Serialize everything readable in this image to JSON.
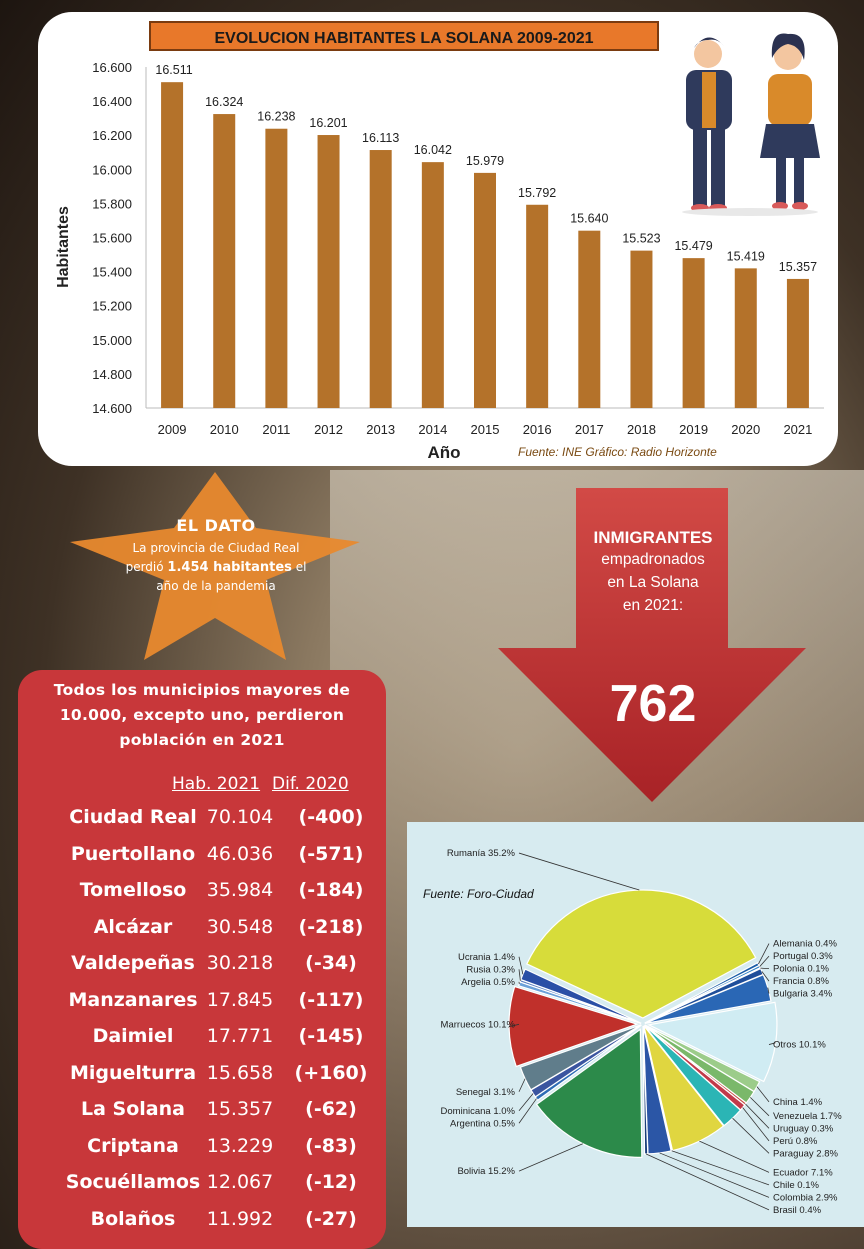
{
  "top_chart": {
    "title": "EVOLUCION HABITANTES  LA SOLANA 2009-2021",
    "source": "Fuente: INE   Gráfico: Radio Horizonte"
  },
  "chart_data": [
    {
      "type": "bar",
      "title": "EVOLUCION HABITANTES  LA SOLANA 2009-2021",
      "xlabel": "Año",
      "ylabel": "Habitantes",
      "ylim": [
        14600,
        16600
      ],
      "y_ticks": [
        "14.600",
        "14.800",
        "15.000",
        "15.200",
        "15.400",
        "15.600",
        "15.800",
        "16.000",
        "16.200",
        "16.400",
        "16.600"
      ],
      "categories": [
        "2009",
        "2010",
        "2011",
        "2012",
        "2013",
        "2014",
        "2015",
        "2016",
        "2017",
        "2018",
        "2019",
        "2020",
        "2021"
      ],
      "values": [
        16511,
        16324,
        16238,
        16201,
        16113,
        16042,
        15979,
        15792,
        15640,
        15523,
        15479,
        15419,
        15357
      ],
      "value_labels": [
        "16.511",
        "16.324",
        "16.238",
        "16.201",
        "16.113",
        "16.042",
        "15.979",
        "15.792",
        "15.640",
        "15.523",
        "15.479",
        "15.419",
        "15.357"
      ],
      "grid": false,
      "bar_color": "#b4722a",
      "source": "Fuente: INE   Gráfico: Radio Horizonte"
    },
    {
      "type": "pie",
      "annotation": "Fuente: Foro-Ciudad",
      "slices": [
        {
          "label": "Rumanía 35.2%",
          "name": "Rumanía",
          "value": 35.2,
          "color": "#d7dc3a"
        },
        {
          "label": "Alemania 0.4%",
          "name": "Alemania",
          "value": 0.4,
          "color": "#1b5ea8"
        },
        {
          "label": "Portugal 0.3%",
          "name": "Portugal",
          "value": 0.3,
          "color": "#2c7fc6"
        },
        {
          "label": "Polonia 0.1%",
          "name": "Polonia",
          "value": 0.1,
          "color": "#c0392b"
        },
        {
          "label": "Francia 0.8%",
          "name": "Francia",
          "value": 0.8,
          "color": "#1f4e9a"
        },
        {
          "label": "Bulgaria 3.4%",
          "name": "Bulgaria",
          "value": 3.4,
          "color": "#2a67b5"
        },
        {
          "label": "Otros 10.1%",
          "name": "Otros",
          "value": 10.1,
          "color": "#d0ecf3"
        },
        {
          "label": "China 1.4%",
          "name": "China",
          "value": 1.4,
          "color": "#9ccc8a"
        },
        {
          "label": "Venezuela 1.7%",
          "name": "Venezuela",
          "value": 1.7,
          "color": "#7ab86a"
        },
        {
          "label": "Uruguay 0.3%",
          "name": "Uruguay",
          "value": 0.3,
          "color": "#c4473d"
        },
        {
          "label": "Perú 0.8%",
          "name": "Perú",
          "value": 0.8,
          "color": "#c23a4a"
        },
        {
          "label": "Paraguay 2.8%",
          "name": "Paraguay",
          "value": 2.8,
          "color": "#2bb5b5"
        },
        {
          "label": "Ecuador 7.1%",
          "name": "Ecuador",
          "value": 7.1,
          "color": "#e0d640"
        },
        {
          "label": "Chile 0.1%",
          "name": "Chile",
          "value": 0.1,
          "color": "#444a52"
        },
        {
          "label": "Colombia 2.9%",
          "name": "Colombia",
          "value": 2.9,
          "color": "#2b56a6"
        },
        {
          "label": "Brasil 0.4%",
          "name": "Brasil",
          "value": 0.4,
          "color": "#1a3f7a"
        },
        {
          "label": "Bolivia 15.2%",
          "name": "Bolivia",
          "value": 15.2,
          "color": "#2c8a4a"
        },
        {
          "label": "Argentina 0.5%",
          "name": "Argentina",
          "value": 0.5,
          "color": "#2f6cb5"
        },
        {
          "label": "Dominicana 1.0%",
          "name": "Dominicana",
          "value": 1.0,
          "color": "#3b55a0"
        },
        {
          "label": "Senegal 3.1%",
          "name": "Senegal",
          "value": 3.1,
          "color": "#607d8b"
        },
        {
          "label": "Marruecos 10.1%",
          "name": "Marruecos",
          "value": 10.1,
          "color": "#c0302b"
        },
        {
          "label": "Argelia 0.5%",
          "name": "Argelia",
          "value": 0.5,
          "color": "#6ba0d8"
        },
        {
          "label": "Rusia 0.3%",
          "name": "Rusia",
          "value": 0.3,
          "color": "#5a7fc0"
        },
        {
          "label": "Ucrania 1.4%",
          "name": "Ucrania",
          "value": 1.4,
          "color": "#2a4fa6"
        }
      ]
    }
  ],
  "dato": {
    "title": "EL DATO",
    "line1": "La provincia de Ciudad Real",
    "line2_pre": "perdió ",
    "line2_bold": "1.454 habitantes",
    "line2_post": " el",
    "line3": "año de la pandemia"
  },
  "inmigrantes": {
    "title": "INMIGRANTES",
    "line1": "empadronados",
    "line2": "en La Solana",
    "line3": "en 2021:",
    "value": "762"
  },
  "municipios": {
    "heading": [
      "Todos los municipios mayores de",
      "10.000, excepto uno, perdieron",
      "población en 2021"
    ],
    "col_hab": "Hab. 2021",
    "col_dif": "Dif. 2020",
    "rows": [
      {
        "name": "Ciudad Real",
        "hab": "70.104",
        "dif": "(-400)"
      },
      {
        "name": "Puertollano",
        "hab": "46.036",
        "dif": "(-571)"
      },
      {
        "name": "Tomelloso",
        "hab": "35.984",
        "dif": "(-184)"
      },
      {
        "name": "Alcázar",
        "hab": "30.548",
        "dif": "(-218)"
      },
      {
        "name": "Valdepeñas",
        "hab": "30.218",
        "dif": "(-34)"
      },
      {
        "name": "Manzanares",
        "hab": "17.845",
        "dif": "(-117)"
      },
      {
        "name": "Daimiel",
        "hab": "17.771",
        "dif": "(-145)"
      },
      {
        "name": "Miguelturra",
        "hab": "15.658",
        "dif": "(+160)"
      },
      {
        "name": "La Solana",
        "hab": "15.357",
        "dif": "(-62)"
      },
      {
        "name": "Criptana",
        "hab": "13.229",
        "dif": "(-83)"
      },
      {
        "name": "Socuéllamos",
        "hab": "12.067",
        "dif": "(-12)"
      },
      {
        "name": "Bolaños",
        "hab": "11.992",
        "dif": "(-27)"
      }
    ]
  }
}
